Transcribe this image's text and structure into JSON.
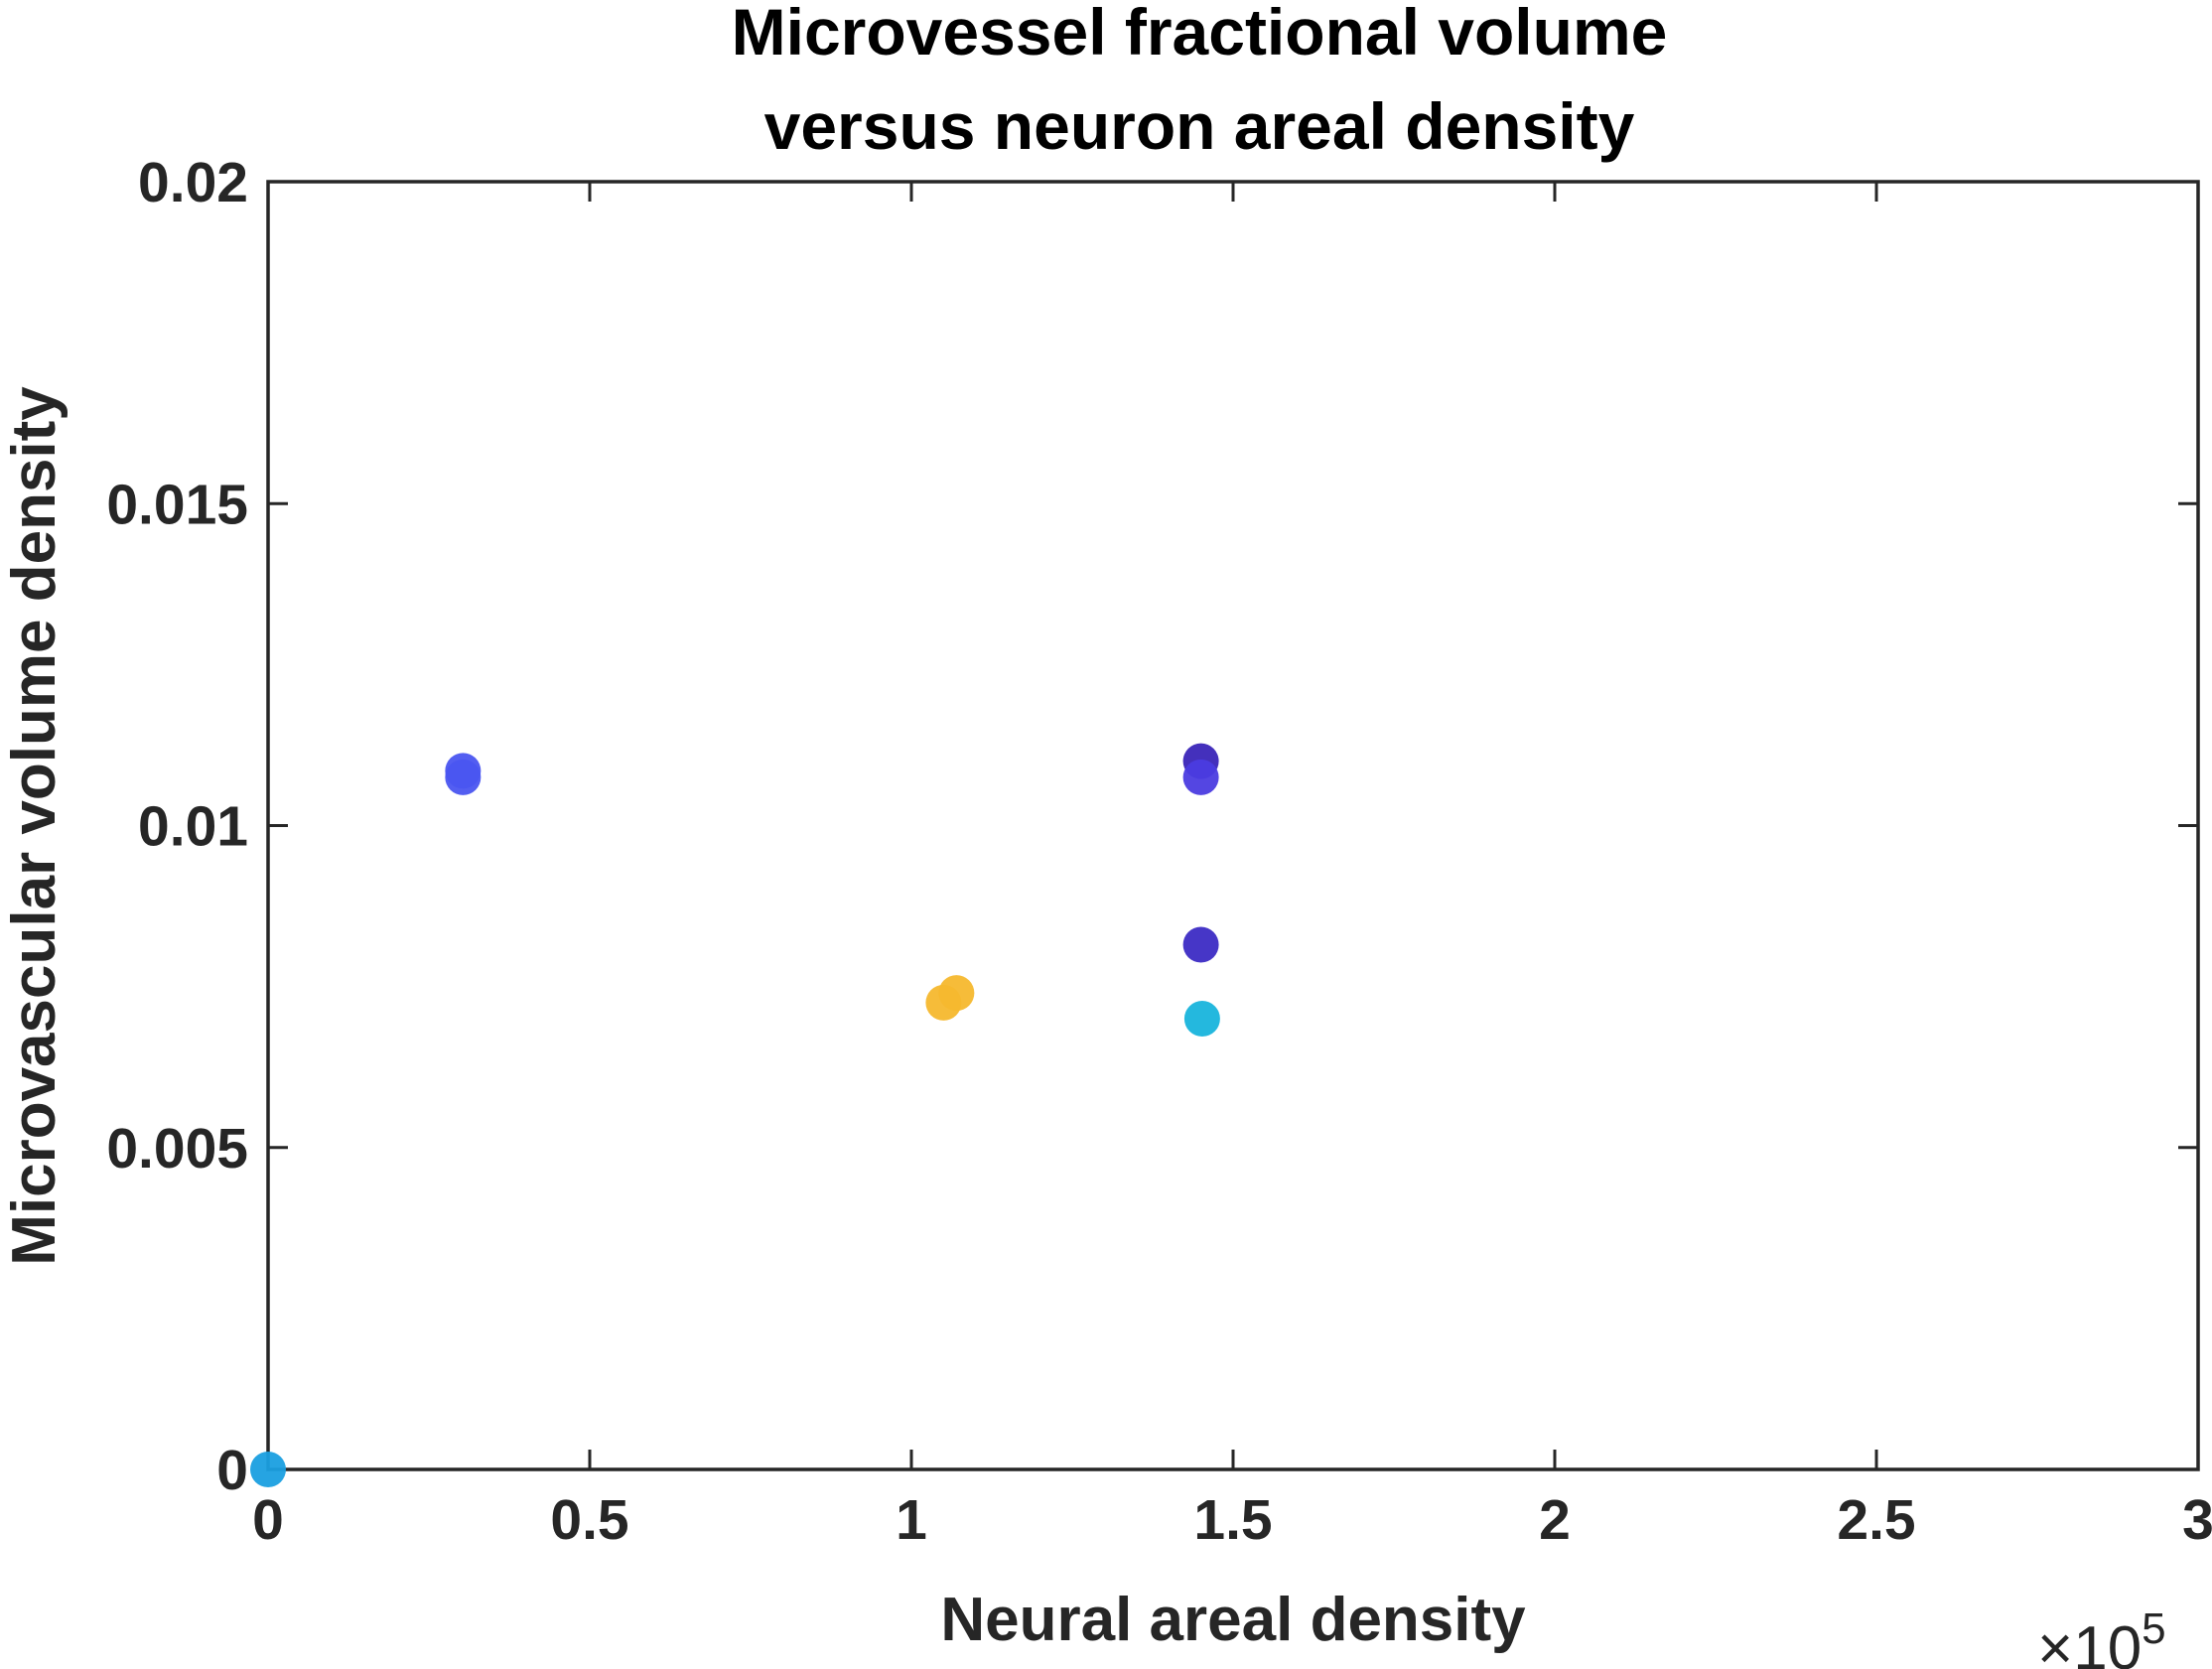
{
  "chart_data": {
    "type": "scatter",
    "title": [
      "Microvessel fractional volume",
      "versus neuron areal density"
    ],
    "xlabel": "Neural areal density",
    "ylabel": "Microvascular volume density",
    "x_exponent": {
      "prefix": "×10",
      "power": "5"
    },
    "xlim": [
      0,
      3
    ],
    "ylim": [
      0,
      0.02
    ],
    "x_ticks": [
      0,
      0.5,
      1,
      1.5,
      2,
      2.5,
      3
    ],
    "x_tick_labels": [
      "0",
      "0.5",
      "1",
      "1.5",
      "2",
      "2.5",
      "3"
    ],
    "y_ticks": [
      0,
      0.005,
      0.01,
      0.015,
      0.02
    ],
    "y_tick_labels": [
      "0",
      "0.005",
      "0.01",
      "0.015",
      "0.02"
    ],
    "grid": false,
    "points": [
      {
        "x": 0.0,
        "y": 0.0,
        "color": "#1a9fe0"
      },
      {
        "x": 0.303,
        "y": 0.01085,
        "color": "#4a55f0"
      },
      {
        "x": 0.303,
        "y": 0.01075,
        "color": "#4a55f0"
      },
      {
        "x": 1.05,
        "y": 0.00725,
        "color": "#f5b82e"
      },
      {
        "x": 1.07,
        "y": 0.0074,
        "color": "#f5b82e"
      },
      {
        "x": 1.45,
        "y": 0.011,
        "color": "#3a25b8"
      },
      {
        "x": 1.45,
        "y": 0.01075,
        "color": "#4b3ce0"
      },
      {
        "x": 1.45,
        "y": 0.00815,
        "color": "#3c2bc4"
      },
      {
        "x": 1.452,
        "y": 0.007,
        "color": "#18b4dc"
      }
    ]
  }
}
